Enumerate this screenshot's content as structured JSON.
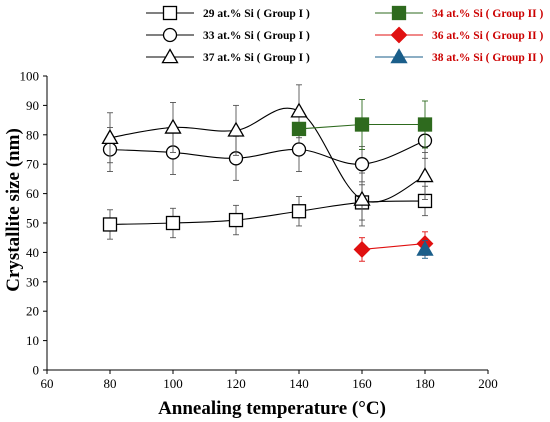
{
  "chart_data": {
    "type": "line",
    "xlabel": "Annealing temperature (°C)",
    "ylabel": "Crystallite size (nm)",
    "xlim": [
      60,
      200
    ],
    "ylim": [
      0,
      100
    ],
    "x_ticks": [
      "60",
      "80",
      "100",
      "120",
      "140",
      "160",
      "180",
      "200"
    ],
    "y_ticks": [
      "0",
      "10",
      "20",
      "30",
      "40",
      "50",
      "60",
      "70",
      "80",
      "90",
      "100"
    ],
    "grid": false,
    "legend_position": "top",
    "series": [
      {
        "name": "29 at.% Si ( Group I )",
        "group": "I",
        "marker": "open-square",
        "color": "#000000",
        "label_color": "#000000",
        "x": [
          80,
          100,
          120,
          140,
          160,
          180
        ],
        "y": [
          49.5,
          50,
          51,
          54,
          57,
          57.5
        ],
        "err": [
          5,
          5,
          5,
          5,
          6,
          5
        ]
      },
      {
        "name": "33 at.% Si ( Group I )",
        "group": "I",
        "marker": "open-circle",
        "color": "#000000",
        "label_color": "#000000",
        "x": [
          80,
          100,
          120,
          140,
          160,
          180
        ],
        "y": [
          75,
          74,
          72,
          75,
          70,
          78
        ],
        "err": [
          7.5,
          7.5,
          7.5,
          7.5,
          6,
          6
        ]
      },
      {
        "name": "37 at.% Si ( Group I )",
        "group": "I",
        "marker": "open-triangle",
        "color": "#000000",
        "label_color": "#000000",
        "x": [
          80,
          100,
          120,
          140,
          160,
          180
        ],
        "y": [
          79,
          82.5,
          81.5,
          88,
          58,
          66
        ],
        "err": [
          8.5,
          8.5,
          8.5,
          9,
          9,
          8
        ]
      },
      {
        "name": "34 at.% Si ( Group II )",
        "group": "II",
        "marker": "filled-square",
        "color": "#2e6a1e",
        "label_color": "#cc0000",
        "x": [
          140,
          160,
          180
        ],
        "y": [
          82,
          83.5,
          83.5
        ],
        "err": [
          0,
          8.5,
          8
        ]
      },
      {
        "name": "36 at.% Si ( Group II )",
        "group": "II",
        "marker": "filled-diamond",
        "color": "#e01010",
        "label_color": "#cc0000",
        "x": [
          160,
          180
        ],
        "y": [
          41,
          43
        ],
        "err": [
          4,
          4
        ]
      },
      {
        "name": "38 at.% Si ( Group II )",
        "group": "II",
        "marker": "filled-triangle",
        "color": "#1a5e8a",
        "label_color": "#cc0000",
        "x": [
          180
        ],
        "y": [
          41
        ],
        "err": [
          3
        ]
      }
    ]
  }
}
